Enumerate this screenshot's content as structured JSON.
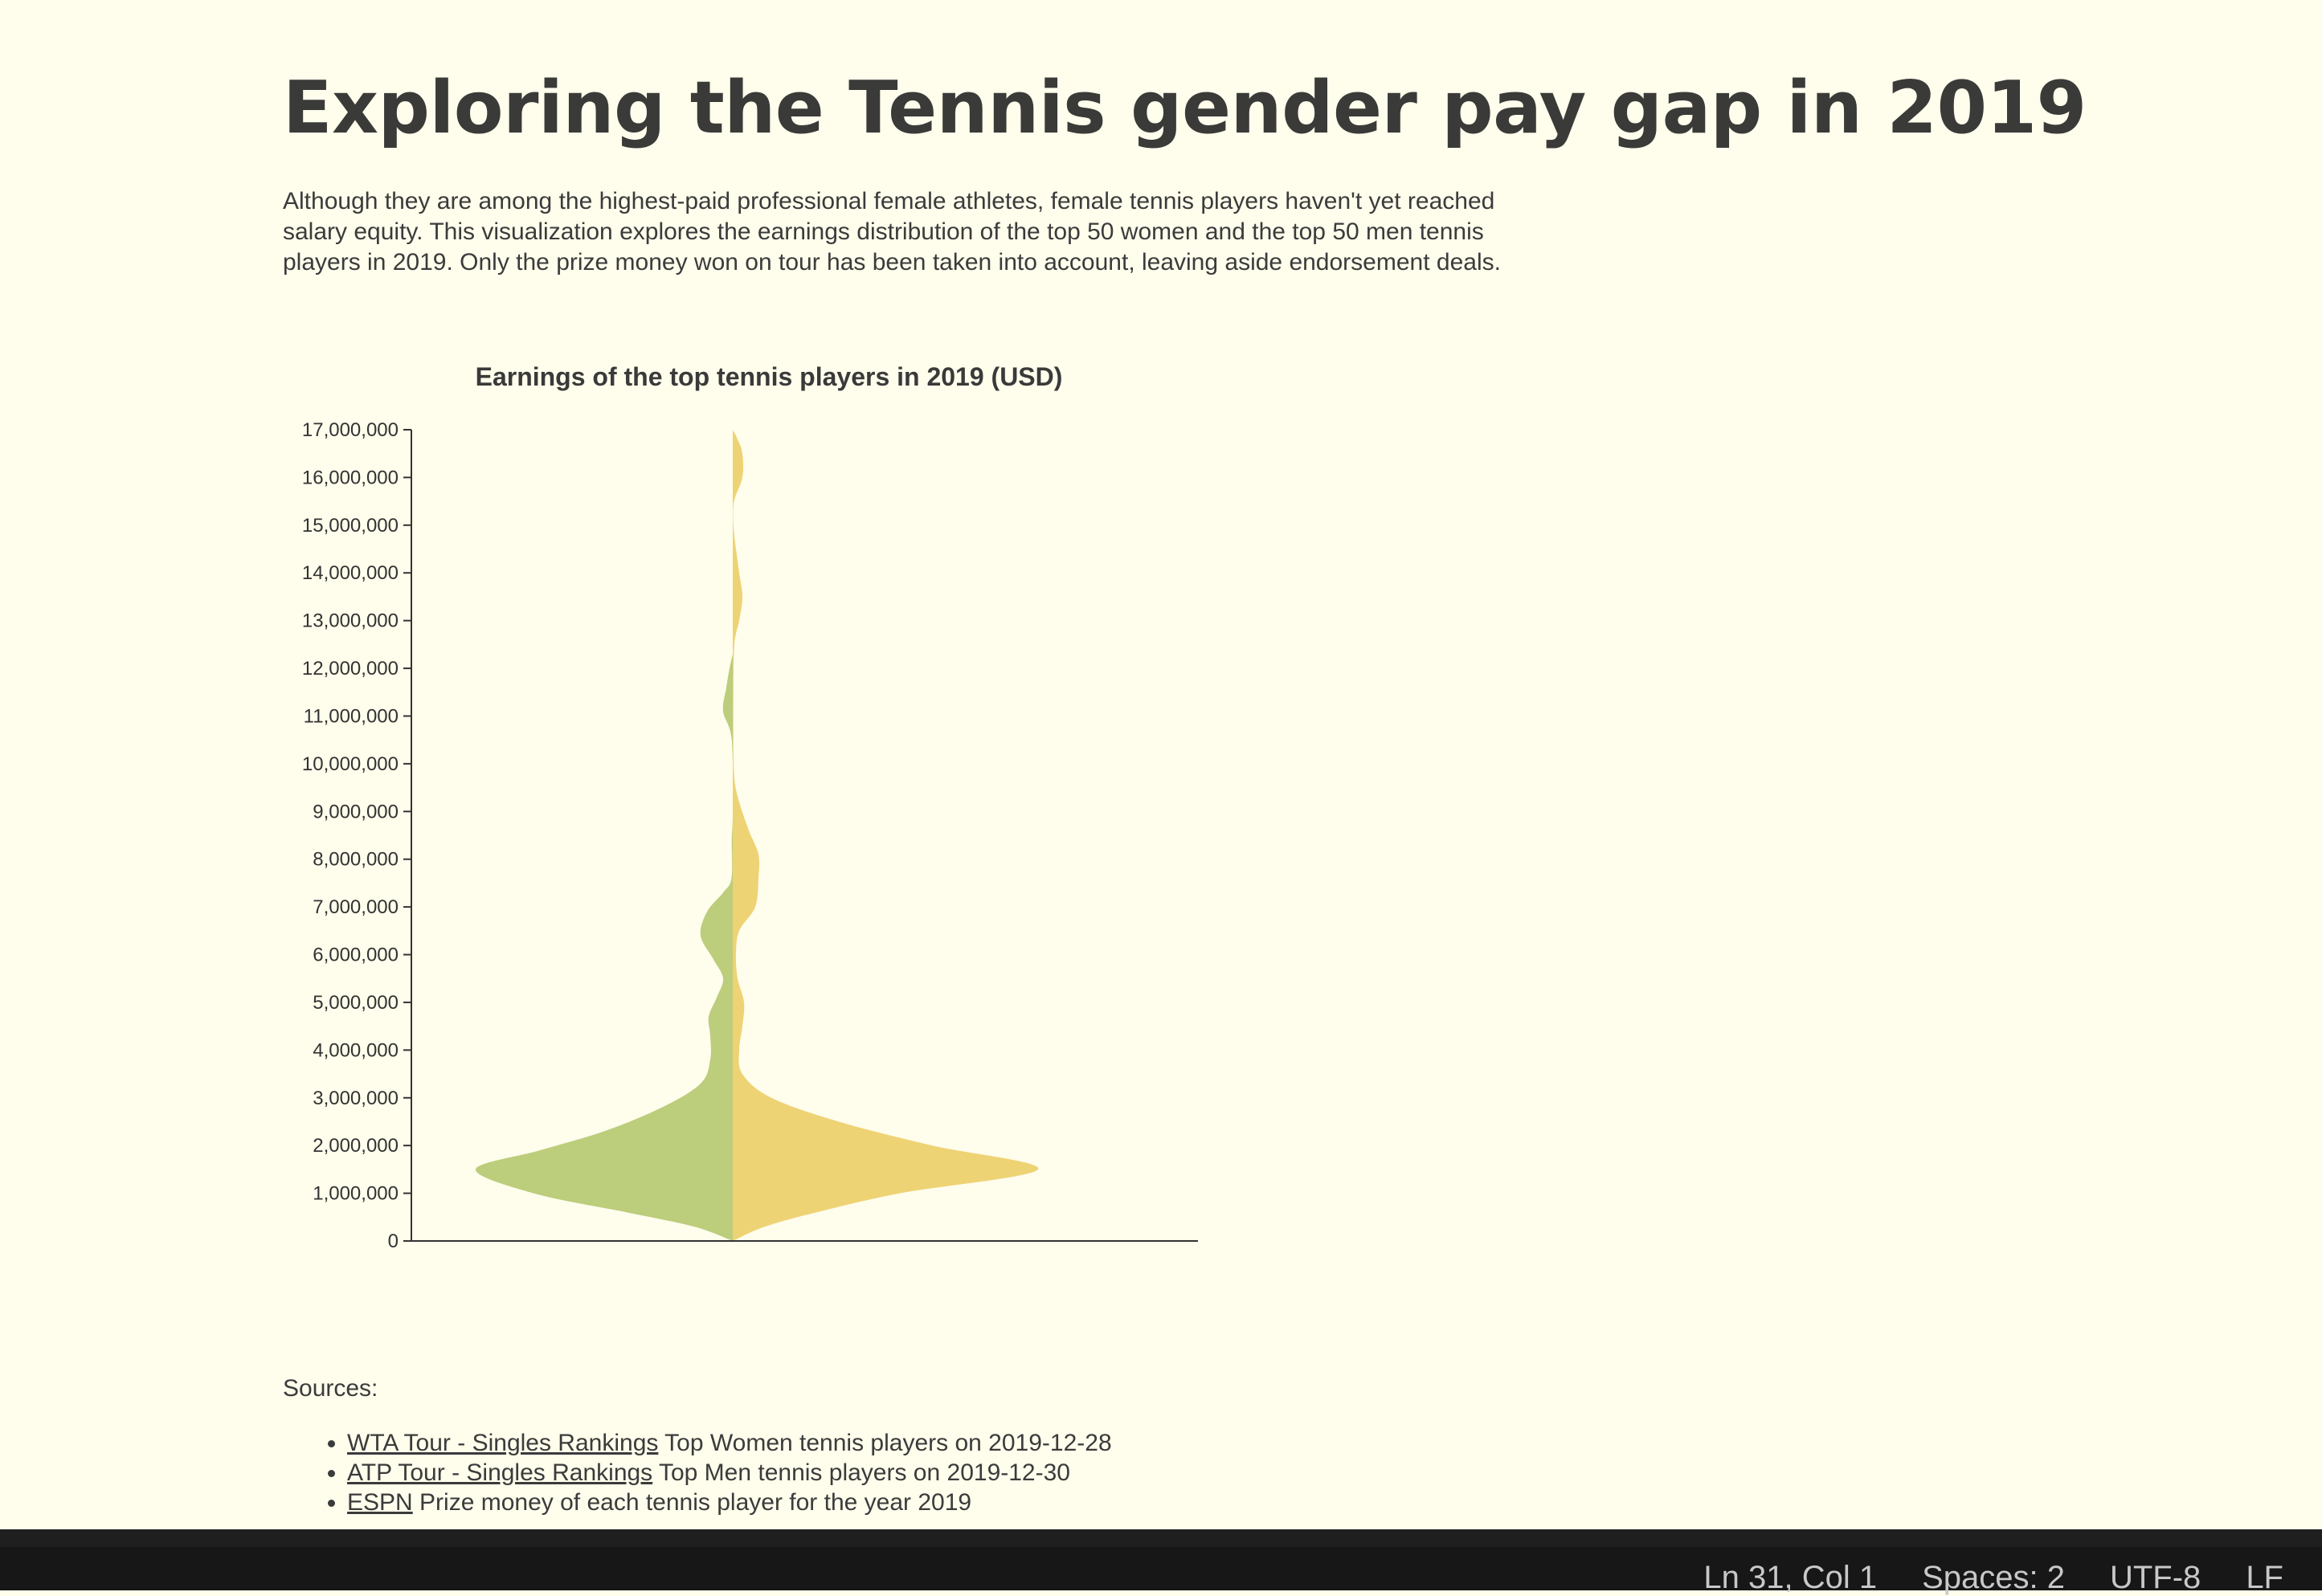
{
  "page": {
    "title": "Exploring the Tennis gender pay gap in 2019",
    "intro": "Although they are among the highest-paid professional female athletes, female tennis players haven't yet reached salary equity. This visualization explores the earnings distribution of the top 50 women and the top 50 men tennis players in 2019. Only the prize money won on tour has been taken into account, leaving aside endorsement deals."
  },
  "chart_data": {
    "type": "violin",
    "title": "Earnings of the top tennis players in 2019 (USD)",
    "ylim": [
      0,
      17000000
    ],
    "yticks": [
      0,
      1000000,
      2000000,
      3000000,
      4000000,
      5000000,
      6000000,
      7000000,
      8000000,
      9000000,
      10000000,
      11000000,
      12000000,
      13000000,
      14000000,
      15000000,
      16000000,
      17000000
    ],
    "ytick_labels": [
      "0",
      "1,000,000",
      "2,000,000",
      "3,000,000",
      "4,000,000",
      "5,000,000",
      "6,000,000",
      "7,000,000",
      "8,000,000",
      "9,000,000",
      "10,000,000",
      "11,000,000",
      "12,000,000",
      "13,000,000",
      "14,000,000",
      "15,000,000",
      "16,000,000",
      "17,000,000"
    ],
    "density_max": 1.0,
    "series": [
      {
        "side": "left",
        "color": "#bccd7c",
        "points": [
          [
            0,
            0
          ],
          [
            300000,
            0.12
          ],
          [
            600000,
            0.33
          ],
          [
            1000000,
            0.62
          ],
          [
            1500000,
            0.8
          ],
          [
            1900000,
            0.6
          ],
          [
            2300000,
            0.4
          ],
          [
            2800000,
            0.22
          ],
          [
            3300000,
            0.1
          ],
          [
            3800000,
            0.07
          ],
          [
            4300000,
            0.07
          ],
          [
            4700000,
            0.075
          ],
          [
            5100000,
            0.05
          ],
          [
            5500000,
            0.03
          ],
          [
            5900000,
            0.06
          ],
          [
            6400000,
            0.1
          ],
          [
            6900000,
            0.08
          ],
          [
            7300000,
            0.03
          ],
          [
            7600000,
            0.004
          ],
          [
            8400000,
            0.003
          ],
          [
            9000000,
            0
          ],
          [
            10500000,
            0.003
          ],
          [
            11100000,
            0.03
          ],
          [
            11600000,
            0.02
          ],
          [
            12000000,
            0.01
          ],
          [
            12300000,
            0
          ]
        ]
      },
      {
        "side": "right",
        "color": "#eed375",
        "points": [
          [
            0,
            0
          ],
          [
            300000,
            0.1
          ],
          [
            600000,
            0.26
          ],
          [
            1000000,
            0.52
          ],
          [
            1500000,
            0.95
          ],
          [
            2000000,
            0.62
          ],
          [
            2500000,
            0.33
          ],
          [
            3000000,
            0.12
          ],
          [
            3500000,
            0.03
          ],
          [
            4000000,
            0.02
          ],
          [
            4500000,
            0.03
          ],
          [
            5000000,
            0.035
          ],
          [
            5500000,
            0.015
          ],
          [
            6000000,
            0.01
          ],
          [
            6500000,
            0.02
          ],
          [
            7000000,
            0.07
          ],
          [
            7600000,
            0.08
          ],
          [
            8100000,
            0.08
          ],
          [
            8600000,
            0.05
          ],
          [
            9200000,
            0.02
          ],
          [
            9700000,
            0.005
          ],
          [
            10500000,
            0.002
          ],
          [
            11500000,
            0.002
          ],
          [
            12500000,
            0.005
          ],
          [
            13000000,
            0.02
          ],
          [
            13500000,
            0.03
          ],
          [
            14000000,
            0.02
          ],
          [
            14500000,
            0.01
          ],
          [
            15000000,
            0.002
          ],
          [
            15500000,
            0.004
          ],
          [
            16000000,
            0.03
          ],
          [
            16500000,
            0.03
          ],
          [
            16800000,
            0.015
          ],
          [
            17000000,
            0
          ]
        ]
      }
    ]
  },
  "sources": {
    "label": "Sources:",
    "items": [
      {
        "link": "WTA Tour - Singles Rankings",
        "text": " Top Women tennis players on 2019-12-28"
      },
      {
        "link": "ATP Tour - Singles Rankings",
        "text": " Top Men tennis players on 2019-12-30"
      },
      {
        "link": "ESPN",
        "text": " Prize money of each tennis player for the year 2019"
      }
    ]
  },
  "statusbar": {
    "position": "Ln 31, Col 1",
    "spaces": "Spaces: 2",
    "encoding": "UTF-8",
    "eol": "LF"
  }
}
